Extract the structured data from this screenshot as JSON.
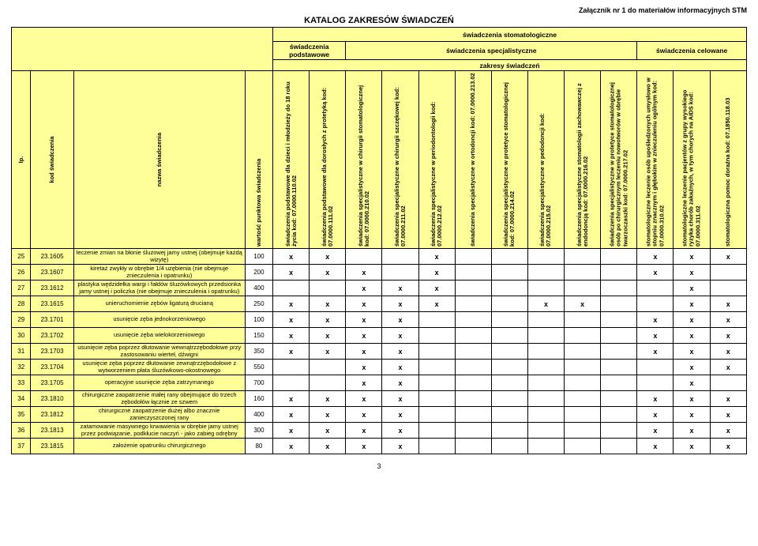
{
  "attachment": "Załącznik nr 1 do materiałów informacyjnych STM",
  "title": "KATALOG ZAKRESÓW ŚWIADCZEŃ",
  "page_number": "3",
  "header": {
    "top_right": "świadczenia stomatologiczne",
    "groups": {
      "basic": "świadczenia podstawowe",
      "specialist": "świadczenia specjalistyczne",
      "targeted": "świadczenia celowane"
    },
    "scopes": "zakresy świadczeń"
  },
  "left_headers": {
    "lp": "lp.",
    "kod": "kod świadczenia",
    "nazwa": "nazwa świadczenia",
    "wartosc": "wartość punktowa świadczenia"
  },
  "service_columns": [
    {
      "label": "świadczenia podstawowe\ndla dzieci i młodzieży do 18 roku życia\nkod: 07.0000.110.02"
    },
    {
      "label": "świadczenia podstawowe\ndla dorosłych z protetyką\nkod: 07.0000.111.02"
    },
    {
      "label": "świadczenia specjalistyczne\nw chirurgii stomatologicznej\nkod: 07.0000.210.02"
    },
    {
      "label": "świadczenia specjalistyczne w chirurgii\nszczękowej\nkod: 07.0000.211.02"
    },
    {
      "label": "świadczenia specjalistyczne\nw periodontologii\nkod: 07.0000.212.02"
    },
    {
      "label": "świadczenia specjalistyczne\nw ortodoncji\nkod: 07.0000.213.02"
    },
    {
      "label": "świadczenia specjalistyczne\nw protetyce stomatologicznej\nkod: 07.0000.214.02"
    },
    {
      "label": "świadczenia specjalistyczne w pedodoncji\nkod: 07.0000.215.02"
    },
    {
      "label": "świadczenia specjalistyczne stomatologii\nzachowawczej z endodoncją\nkod: 07.0000.216.02"
    },
    {
      "label": "świadczenia specjalistyczne w protetyce\nstomatologicznej osób po chirurgicznym\nleczeniu nowotworów w obrębie\ntwarzoczaszki\nkod: 07.0000.217.02"
    },
    {
      "label": "stomatologiczne leczenie osób\nupośledzonych umysłowo w stopniu\nznacznym i głębokim w znieczuleniu ogólnym\nkod: 07.0000.310.02"
    },
    {
      "label": "stomatologiczne leczenie pacjentów z grupy\nwysokiego ryzyka chorób zakaźnych, w tym\nchorych na AIDS\nkod: 07.0000.311.02"
    },
    {
      "label": "stomatologiczna pomoc doraźna\nkod: 07.1850.118.03"
    }
  ],
  "rows": [
    {
      "lp": "25",
      "kod": "23.1605",
      "nazwa": "leczenie zmian na błonie śluzowej jamy ustnej (obejmuje każdą wizytę)",
      "wartosc": "100",
      "marks": [
        1,
        1,
        0,
        0,
        1,
        0,
        0,
        0,
        0,
        0,
        1,
        1,
        1
      ]
    },
    {
      "lp": "26",
      "kod": "23.1607",
      "nazwa": "kiretaż zwykły w obrębie 1/4 uzębienia (nie obejmuje znieczulenia i opatrunku)",
      "wartosc": "200",
      "marks": [
        1,
        1,
        1,
        0,
        1,
        0,
        0,
        0,
        0,
        0,
        1,
        1,
        0
      ]
    },
    {
      "lp": "27",
      "kod": "23.1612",
      "nazwa": "plastyka wędzidełka wargi i fałdów śluzówkowych przedsionka jamy ustnej i policzka (nie obejmuje znieczulenia i opatrunku)",
      "wartosc": "400",
      "marks": [
        0,
        0,
        1,
        1,
        1,
        0,
        0,
        0,
        0,
        0,
        0,
        1,
        0
      ]
    },
    {
      "lp": "28",
      "kod": "23.1615",
      "nazwa": "unieruchomienie zębów ligaturą drucianą",
      "wartosc": "250",
      "marks": [
        1,
        1,
        1,
        1,
        1,
        0,
        0,
        1,
        1,
        0,
        0,
        1,
        1
      ]
    },
    {
      "lp": "29",
      "kod": "23.1701",
      "nazwa": "usunięcie zęba jednokorzeniowego",
      "wartosc": "100",
      "marks": [
        1,
        1,
        1,
        1,
        0,
        0,
        0,
        0,
        0,
        0,
        1,
        1,
        1
      ]
    },
    {
      "lp": "30",
      "kod": "23.1702",
      "nazwa": "usunięcie zęba wielokorzeniowego",
      "wartosc": "150",
      "marks": [
        1,
        1,
        1,
        1,
        0,
        0,
        0,
        0,
        0,
        0,
        1,
        1,
        1
      ]
    },
    {
      "lp": "31",
      "kod": "23.1703",
      "nazwa": "usunięcie zęba poprzez dłutowanie wewnątrzzębodołowe przy zastosowaniu wierteł, dźwigni",
      "wartosc": "350",
      "marks": [
        1,
        1,
        1,
        1,
        0,
        0,
        0,
        0,
        0,
        0,
        1,
        1,
        1
      ]
    },
    {
      "lp": "32",
      "kod": "23.1704",
      "nazwa": "usunięcie zęba poprzez dłutowanie zewnątrzzębodołowe z wytworzeniem płata śluzówkowo-okostnowego",
      "wartosc": "550",
      "marks": [
        0,
        0,
        1,
        1,
        0,
        0,
        0,
        0,
        0,
        0,
        0,
        1,
        1
      ]
    },
    {
      "lp": "33",
      "kod": "23.1705",
      "nazwa": "operacyjne usunięcie zęba zatrzymanego",
      "wartosc": "700",
      "marks": [
        0,
        0,
        1,
        1,
        0,
        0,
        0,
        0,
        0,
        0,
        0,
        1,
        0
      ]
    },
    {
      "lp": "34",
      "kod": "23.1810",
      "nazwa": "chirurgiczne zaopatrzenie małej rany obejmujące do trzech zębodołów łącznie ze szwem",
      "wartosc": "160",
      "marks": [
        1,
        1,
        1,
        1,
        0,
        0,
        0,
        0,
        0,
        0,
        1,
        1,
        1
      ]
    },
    {
      "lp": "35",
      "kod": "23.1812",
      "nazwa": "chirurgiczne zaopatrzenie dużej albo znacznie zanieczyszczonej rany",
      "wartosc": "400",
      "marks": [
        1,
        1,
        1,
        1,
        0,
        0,
        0,
        0,
        0,
        0,
        1,
        1,
        1
      ]
    },
    {
      "lp": "36",
      "kod": "23.1813",
      "nazwa": "zatamowanie masywnego krwawienia w obrębie jamy ustnej przez podwiązanie, podkłucie naczyń - jako zabieg odrębny",
      "wartosc": "300",
      "marks": [
        1,
        1,
        1,
        1,
        0,
        0,
        0,
        0,
        0,
        0,
        1,
        1,
        1
      ]
    },
    {
      "lp": "37",
      "kod": "23.1815",
      "nazwa": "założenie opatrunku chirurgicznego",
      "wartosc": "80",
      "marks": [
        1,
        1,
        1,
        1,
        0,
        0,
        0,
        0,
        0,
        0,
        1,
        1,
        1
      ]
    }
  ],
  "colors": {
    "header_bg": "#ffff99",
    "border": "#000000",
    "text": "#000000"
  }
}
